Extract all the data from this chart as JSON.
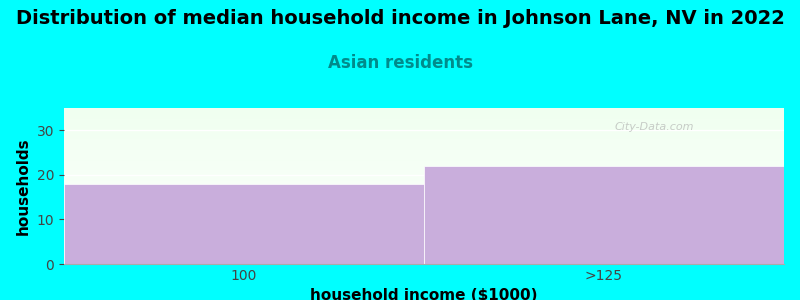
{
  "title": "Distribution of median household income in Johnson Lane, NV in 2022",
  "subtitle": "Asian residents",
  "xlabel": "household income ($1000)",
  "ylabel": "households",
  "categories": [
    "100",
    ">125"
  ],
  "values": [
    18,
    22
  ],
  "bar_color": "#C9AEDC",
  "background_color": "#00FFFF",
  "plot_bg_top": "#F0FFF0",
  "plot_bg_bottom": "#FAFFFE",
  "ylim": [
    0,
    35
  ],
  "yticks": [
    0,
    10,
    20,
    30
  ],
  "title_fontsize": 14,
  "subtitle_fontsize": 12,
  "subtitle_color": "#008B8B",
  "axis_label_fontsize": 11,
  "watermark": "City-Data.com"
}
